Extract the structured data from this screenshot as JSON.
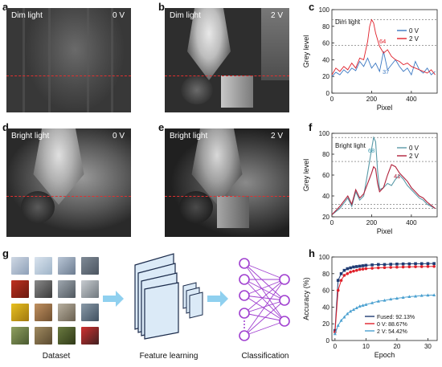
{
  "panels": {
    "a": {
      "label": "a",
      "condition": "Dim light",
      "voltage": "0 V"
    },
    "b": {
      "label": "b",
      "condition": "Dim light",
      "voltage": "2 V"
    },
    "c": {
      "label": "c"
    },
    "d": {
      "label": "d",
      "condition": "Bright light",
      "voltage": "0 V"
    },
    "e": {
      "label": "e",
      "condition": "Bright light",
      "voltage": "2 V"
    },
    "f": {
      "label": "f"
    },
    "g": {
      "label": "g",
      "captions": {
        "dataset": "Dataset",
        "feature": "Feature learning",
        "classification": "Classification"
      }
    },
    "h": {
      "label": "h"
    }
  },
  "chart_data": [
    {
      "panel": "c",
      "type": "line",
      "annotation_title": "Dim light",
      "xlabel": "Pixel",
      "ylabel": "Grey level",
      "xlim": [
        0,
        530
      ],
      "ylim": [
        0,
        100
      ],
      "xticks": [
        0,
        200,
        400
      ],
      "yticks": [
        0,
        20,
        40,
        60,
        80,
        100
      ],
      "legend_position": "top-right",
      "colors": {
        "0 V": "#3b78c2",
        "2 V": "#e0202a"
      },
      "annotations": [
        {
          "text": "64",
          "color": "#e0202a"
        },
        {
          "text": "37",
          "color": "#3b78c2"
        }
      ],
      "series": [
        {
          "name": "0 V",
          "x": [
            0,
            20,
            40,
            60,
            80,
            100,
            120,
            140,
            160,
            180,
            200,
            220,
            240,
            260,
            280,
            300,
            320,
            340,
            360,
            380,
            400,
            420,
            440,
            460,
            480,
            500,
            520
          ],
          "y": [
            20,
            25,
            22,
            28,
            24,
            30,
            27,
            38,
            32,
            42,
            30,
            36,
            26,
            50,
            28,
            34,
            40,
            32,
            26,
            30,
            22,
            38,
            28,
            24,
            30,
            22,
            26
          ]
        },
        {
          "name": "2 V",
          "x": [
            0,
            20,
            40,
            60,
            80,
            100,
            120,
            140,
            160,
            180,
            190,
            200,
            210,
            220,
            240,
            260,
            280,
            300,
            320,
            340,
            360,
            380,
            400,
            420,
            440,
            460,
            480,
            500,
            520
          ],
          "y": [
            22,
            30,
            26,
            32,
            28,
            36,
            30,
            42,
            40,
            62,
            80,
            88,
            84,
            72,
            56,
            48,
            52,
            44,
            40,
            38,
            34,
            36,
            32,
            30,
            28,
            26,
            24,
            28,
            22
          ]
        }
      ]
    },
    {
      "panel": "f",
      "type": "line",
      "annotation_title": "Bright light",
      "xlabel": "Pixel",
      "ylabel": "Grey level",
      "xlim": [
        0,
        530
      ],
      "ylim": [
        20,
        100
      ],
      "xticks": [
        0,
        200,
        400
      ],
      "yticks": [
        20,
        40,
        60,
        80,
        100
      ],
      "legend_position": "top-right",
      "colors": {
        "0 V": "#5a9aa8",
        "2 V": "#b0203a"
      },
      "annotations": [
        {
          "text": "68",
          "color": "#3b9ab0"
        },
        {
          "text": "41",
          "color": "#b0203a"
        }
      ],
      "series": [
        {
          "name": "0 V",
          "x": [
            0,
            40,
            80,
            100,
            120,
            140,
            160,
            180,
            200,
            210,
            220,
            230,
            240,
            260,
            280,
            300,
            320,
            340,
            360,
            380,
            400,
            420,
            440,
            460,
            480,
            500,
            520
          ],
          "y": [
            22,
            28,
            38,
            30,
            44,
            36,
            40,
            62,
            85,
            96,
            92,
            64,
            46,
            48,
            52,
            50,
            56,
            60,
            56,
            50,
            46,
            42,
            38,
            36,
            32,
            30,
            28
          ]
        },
        {
          "name": "2 V",
          "x": [
            0,
            40,
            80,
            100,
            120,
            140,
            160,
            180,
            200,
            210,
            220,
            230,
            240,
            260,
            280,
            300,
            320,
            340,
            360,
            380,
            400,
            420,
            440,
            460,
            480,
            500,
            520
          ],
          "y": [
            22,
            30,
            40,
            32,
            46,
            38,
            42,
            52,
            62,
            68,
            66,
            52,
            44,
            48,
            60,
            70,
            68,
            62,
            58,
            54,
            48,
            44,
            40,
            38,
            34,
            31,
            28
          ]
        }
      ]
    },
    {
      "panel": "h",
      "type": "line",
      "xlabel": "Epoch",
      "ylabel": "Accuracy (%)",
      "xlim": [
        -1,
        33
      ],
      "ylim": [
        0,
        100
      ],
      "xticks": [
        0,
        10,
        20,
        30
      ],
      "yticks": [
        0,
        20,
        40,
        60,
        80,
        100
      ],
      "legend_position": "bottom-right",
      "series": [
        {
          "name": "Fused: 92.13%",
          "color": "#1f3b73",
          "marker": "square",
          "x": [
            0,
            1,
            2,
            3,
            4,
            5,
            6,
            7,
            8,
            9,
            10,
            12,
            14,
            16,
            18,
            20,
            22,
            24,
            26,
            28,
            30,
            32
          ],
          "y": [
            12,
            72,
            80,
            84,
            86,
            87,
            88,
            88.5,
            89,
            89.5,
            90,
            90.5,
            91,
            91,
            91.3,
            91.5,
            91.7,
            91.8,
            92,
            92,
            92.1,
            92.13
          ]
        },
        {
          "name": "0 V: 88.67%",
          "color": "#e0202a",
          "marker": "circle",
          "x": [
            0,
            1,
            2,
            3,
            4,
            5,
            6,
            7,
            8,
            9,
            10,
            12,
            14,
            16,
            18,
            20,
            22,
            24,
            26,
            28,
            30,
            32
          ],
          "y": [
            10,
            60,
            72,
            78,
            80,
            82,
            83,
            84,
            85,
            85.5,
            86,
            86.5,
            87,
            87.3,
            87.6,
            87.8,
            88,
            88.2,
            88.4,
            88.5,
            88.6,
            88.67
          ]
        },
        {
          "name": "2 V: 54.42%",
          "color": "#4aa0d0",
          "marker": "triangle",
          "x": [
            0,
            1,
            2,
            3,
            4,
            5,
            6,
            7,
            8,
            9,
            10,
            12,
            14,
            16,
            18,
            20,
            22,
            24,
            26,
            28,
            30,
            32
          ],
          "y": [
            8,
            18,
            24,
            28,
            32,
            35,
            37,
            39,
            41,
            42,
            43,
            45,
            47,
            48,
            49.5,
            50.5,
            51.5,
            52.5,
            53,
            53.8,
            54.2,
            54.42
          ]
        }
      ]
    }
  ]
}
